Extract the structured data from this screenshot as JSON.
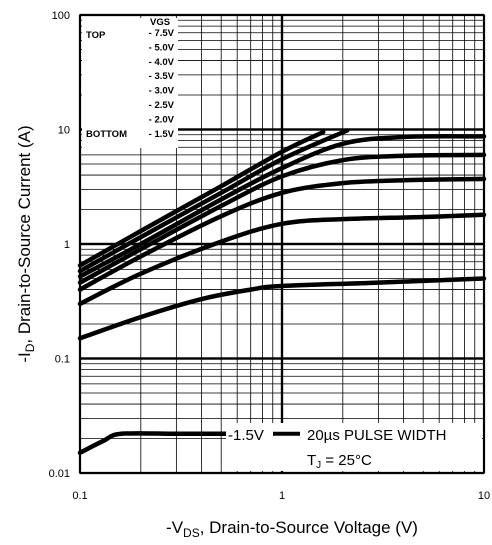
{
  "chart_data": {
    "type": "line",
    "x_scale": "log",
    "y_scale": "log",
    "xlim": [
      0.1,
      10
    ],
    "ylim": [
      0.01,
      100
    ],
    "x_ticks": [
      "0.1",
      "1",
      "10"
    ],
    "y_ticks": [
      "0.01",
      "0.1",
      "1",
      "10",
      "100"
    ],
    "xlabel": {
      "prefix": "-V",
      "sub": "DS",
      "suffix": ", Drain-to-Source Voltage (V)"
    },
    "ylabel": {
      "prefix": "-I",
      "sub": "D",
      "suffix": ", Drain-to-Source Current (A)"
    },
    "grid": true,
    "legend": {
      "header": "VGS",
      "top_label": "TOP",
      "bottom_label": "BOTTOM",
      "entries": [
        "- 7.5V",
        "- 5.0V",
        "- 4.0V",
        "- 3.5V",
        "- 3.0V",
        "- 2.5V",
        "- 2.0V",
        "- 1.5V"
      ]
    },
    "annotations": {
      "curve_label": "-1.5V",
      "pulse": "20µs PULSE WIDTH",
      "tj_prefix": "T",
      "tj_sub": "J",
      "tj_suffix": " = 25°C"
    },
    "series": [
      {
        "name": "- 7.5V",
        "x": [
          0.1,
          0.2,
          0.5,
          1,
          1.6
        ],
        "y": [
          0.65,
          1.3,
          3.2,
          6.4,
          9.5
        ]
      },
      {
        "name": "- 5.0V",
        "x": [
          0.1,
          0.2,
          0.5,
          1,
          2.1
        ],
        "y": [
          0.58,
          1.15,
          2.8,
          5.5,
          9.8
        ]
      },
      {
        "name": "- 4.0V",
        "x": [
          0.1,
          0.2,
          0.5,
          1,
          2,
          4,
          10
        ],
        "y": [
          0.52,
          1.0,
          2.45,
          4.6,
          7.5,
          8.6,
          8.7
        ]
      },
      {
        "name": "- 3.5V",
        "x": [
          0.1,
          0.2,
          0.5,
          1,
          2,
          4,
          10
        ],
        "y": [
          0.46,
          0.9,
          2.15,
          3.9,
          5.4,
          5.9,
          6.0
        ]
      },
      {
        "name": "- 3.0V",
        "x": [
          0.1,
          0.2,
          0.5,
          1,
          2,
          4,
          10
        ],
        "y": [
          0.4,
          0.78,
          1.75,
          2.8,
          3.4,
          3.6,
          3.7
        ]
      },
      {
        "name": "- 2.5V",
        "x": [
          0.1,
          0.2,
          0.5,
          1,
          2,
          5,
          10
        ],
        "y": [
          0.3,
          0.55,
          1.05,
          1.5,
          1.65,
          1.72,
          1.8
        ]
      },
      {
        "name": "- 2.0V",
        "x": [
          0.1,
          0.2,
          0.4,
          0.7,
          1,
          3,
          10
        ],
        "y": [
          0.15,
          0.23,
          0.33,
          0.4,
          0.43,
          0.46,
          0.5
        ]
      },
      {
        "name": "- 1.5V",
        "x": [
          0.1,
          0.13,
          0.16,
          0.3,
          0.6
        ],
        "y": [
          0.015,
          0.019,
          0.022,
          0.022,
          0.022
        ]
      }
    ]
  }
}
